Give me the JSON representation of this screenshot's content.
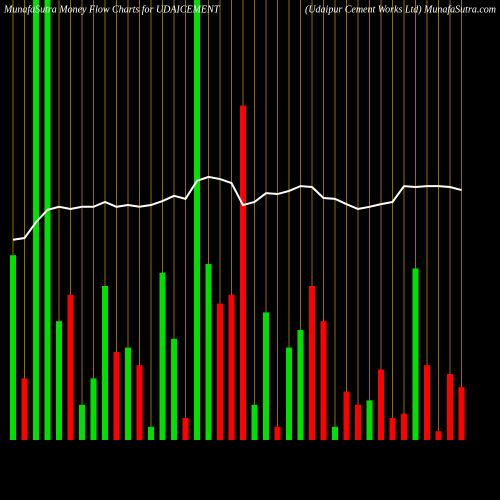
{
  "chart_data": {
    "type": "bar",
    "title": "MunafaSutra  Money Flow  Charts for UDAICEMENT",
    "subtitle": "(Udaipur Cement Works Ltd) MunafaSutra.com",
    "categories": [
      null,
      null,
      null,
      null,
      null,
      null,
      null,
      null,
      null,
      null,
      null,
      null,
      null,
      null,
      null,
      null,
      null,
      null,
      null,
      null,
      null,
      null,
      null,
      null,
      null,
      null,
      null,
      null,
      null,
      null,
      null,
      null,
      null,
      null,
      null,
      null,
      null,
      null,
      null,
      null
    ],
    "series": [
      {
        "type": "bar",
        "values": [
          42,
          14,
          100,
          100,
          27,
          33,
          8,
          14,
          35,
          20,
          21,
          17,
          3,
          38,
          23,
          5,
          100,
          40,
          31,
          33,
          76,
          8,
          29,
          3,
          21,
          25,
          35,
          27,
          3,
          11,
          8,
          9,
          16,
          5,
          6,
          39,
          17,
          2,
          15,
          12
        ],
        "colors": [
          "#00e000",
          "#ff0000",
          "#00e000",
          "#00e000",
          "#00e000",
          "#ff0000",
          "#00e000",
          "#00e000",
          "#00e000",
          "#ff0000",
          "#00e000",
          "#ff0000",
          "#00e000",
          "#00e000",
          "#00e000",
          "#ff0000",
          "#00e000",
          "#00e000",
          "#ff0000",
          "#ff0000",
          "#ff0000",
          "#00e000",
          "#00e000",
          "#ff0000",
          "#00e000",
          "#00e000",
          "#ff0000",
          "#ff0000",
          "#00e000",
          "#ff0000",
          "#ff0000",
          "#00e000",
          "#ff0000",
          "#ff0000",
          "#ff0000",
          "#00e000",
          "#ff0000",
          "#ff0000",
          "#ff0000",
          "#ff0000"
        ]
      },
      {
        "type": "line",
        "color": "#ffffff",
        "values": [
          45.5,
          45.9,
          49.5,
          52.3,
          53,
          52.5,
          53,
          53,
          54.1,
          53,
          53.4,
          53,
          53.4,
          54.3,
          55.5,
          54.8,
          58.9,
          59.8,
          59.3,
          58.4,
          53.4,
          54.1,
          56.1,
          55.9,
          56.6,
          57.7,
          57.5,
          55,
          54.8,
          53.6,
          52.5,
          53,
          53.6,
          54.1,
          57.7,
          57.5,
          57.7,
          57.7,
          57.5,
          56.8
        ]
      }
    ],
    "ylim": [
      0,
      100
    ],
    "grid_color": "#b8860b"
  }
}
